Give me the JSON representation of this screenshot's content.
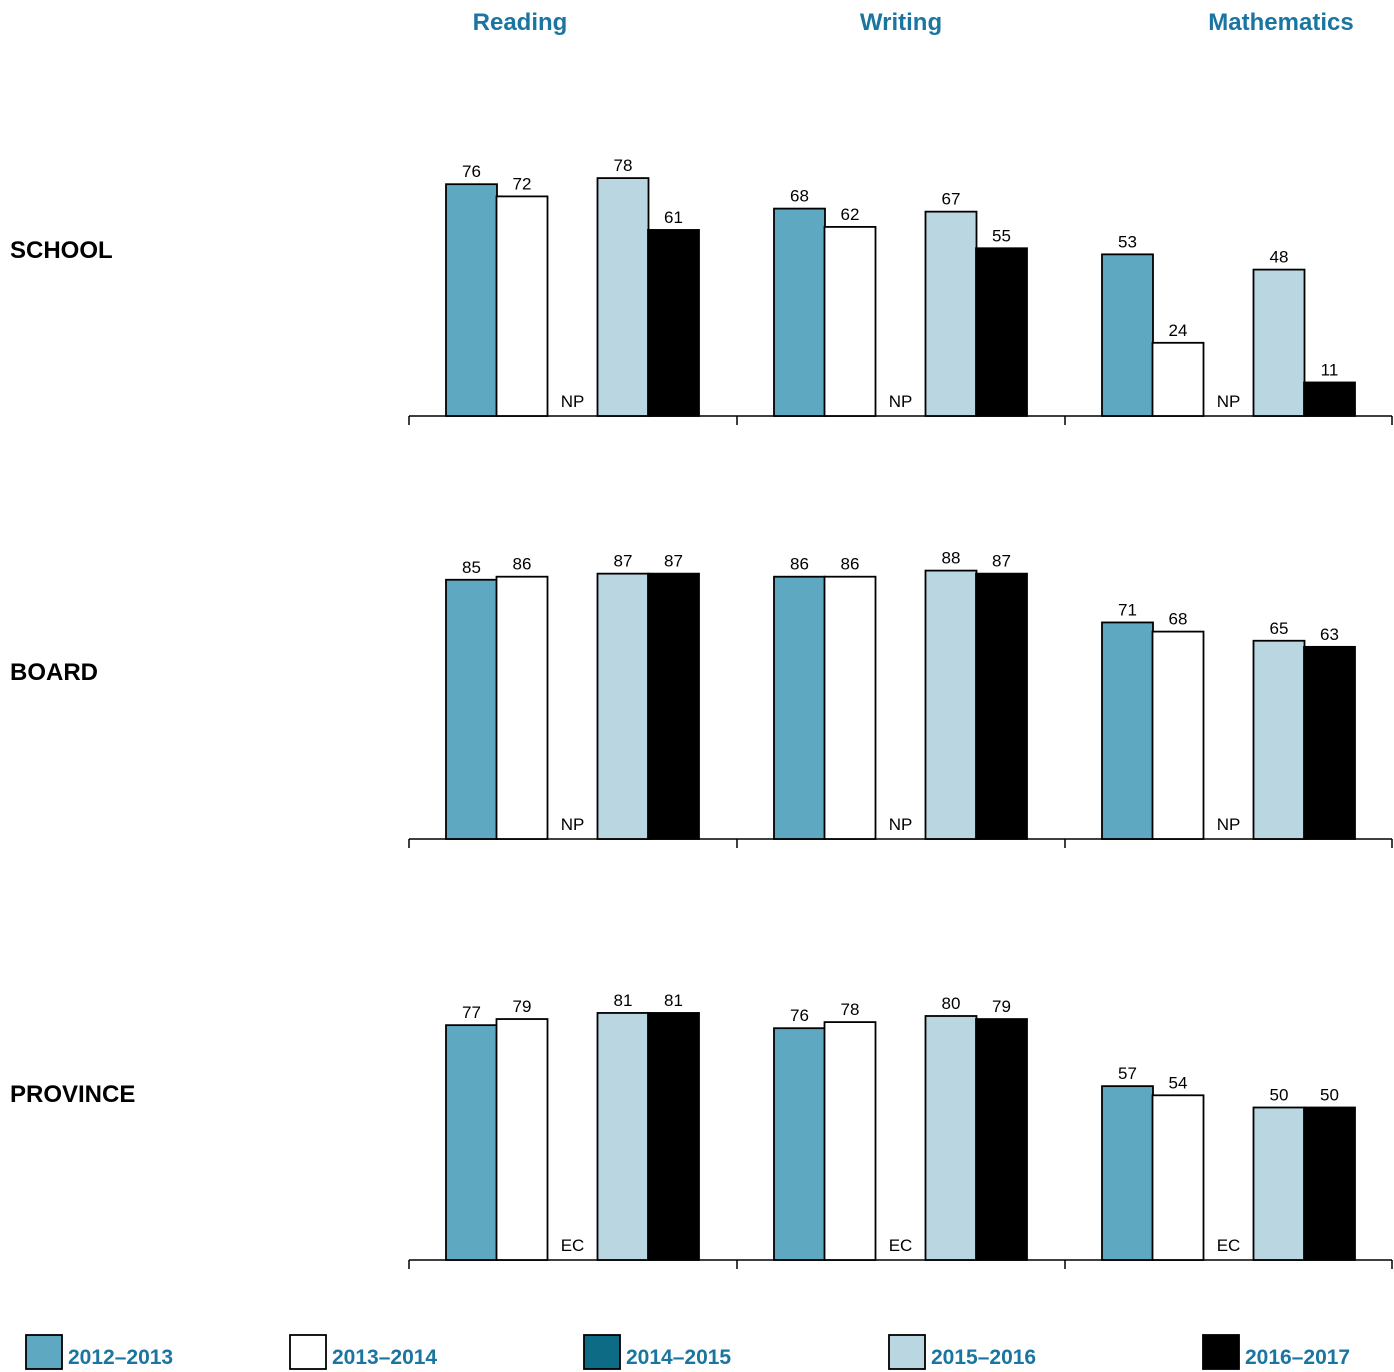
{
  "chart_data": {
    "type": "bar",
    "subjects": [
      "Reading",
      "Writing",
      "Mathematics"
    ],
    "levels": [
      "SCHOOL",
      "BOARD",
      "PROVINCE"
    ],
    "years": [
      "2012–2013",
      "2013–2014",
      "2014–2015",
      "2015–2016",
      "2016–2017"
    ],
    "colors": [
      "#5fa8c1",
      "#ffffff",
      "#0e6b85",
      "#bad7e1",
      "#000000"
    ],
    "missing_label": {
      "SCHOOL": "NP",
      "BOARD": "NP",
      "PROVINCE": "EC"
    },
    "ylim": [
      0,
      100
    ],
    "grid": false,
    "legend_position": "bottom",
    "values": {
      "SCHOOL": {
        "Reading": [
          76,
          72,
          null,
          78,
          61
        ],
        "Writing": [
          68,
          62,
          null,
          67,
          55
        ],
        "Mathematics": [
          53,
          24,
          null,
          48,
          11
        ]
      },
      "BOARD": {
        "Reading": [
          85,
          86,
          null,
          87,
          87
        ],
        "Writing": [
          86,
          86,
          null,
          88,
          87
        ],
        "Mathematics": [
          71,
          68,
          null,
          65,
          63
        ]
      },
      "PROVINCE": {
        "Reading": [
          77,
          79,
          null,
          81,
          81
        ],
        "Writing": [
          76,
          78,
          null,
          80,
          79
        ],
        "Mathematics": [
          57,
          54,
          null,
          50,
          50
        ]
      }
    }
  }
}
